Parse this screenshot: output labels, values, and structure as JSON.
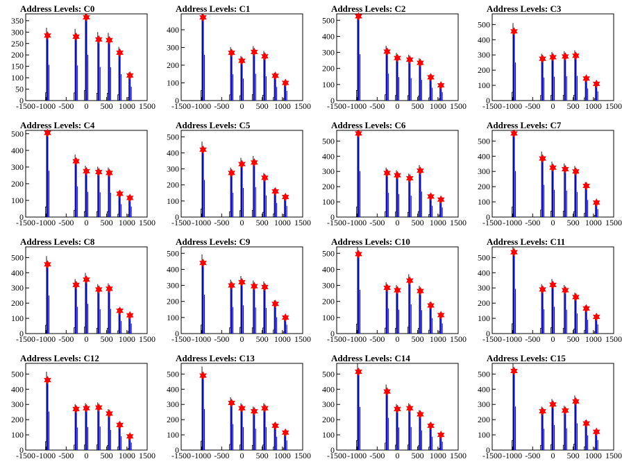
{
  "chart_data": [
    {
      "type": "bar",
      "title": "Address Levels: C0",
      "xlim": [
        -1500,
        1500
      ],
      "ylim": [
        0,
        380
      ],
      "yticks": [
        0,
        50,
        100,
        150,
        200,
        250,
        300,
        350
      ],
      "xticks": [
        -1500,
        -1000,
        -500,
        0,
        500,
        1000,
        1500
      ],
      "peaks": [
        {
          "x": -960,
          "y": 285
        },
        {
          "x": -255,
          "y": 280
        },
        {
          "x": 0,
          "y": 365
        },
        {
          "x": 305,
          "y": 268
        },
        {
          "x": 565,
          "y": 265
        },
        {
          "x": 825,
          "y": 210
        },
        {
          "x": 1075,
          "y": 110
        }
      ]
    },
    {
      "type": "bar",
      "title": "Address Levels: C1",
      "xlim": [
        -1500,
        1500
      ],
      "ylim": [
        0,
        490
      ],
      "yticks": [
        0,
        100,
        200,
        300,
        400
      ],
      "xticks": [
        -1500,
        -1000,
        -500,
        0,
        500,
        1000,
        1500
      ],
      "peaks": [
        {
          "x": -960,
          "y": 470
        },
        {
          "x": -255,
          "y": 270
        },
        {
          "x": 0,
          "y": 225
        },
        {
          "x": 305,
          "y": 275
        },
        {
          "x": 565,
          "y": 250
        },
        {
          "x": 825,
          "y": 140
        },
        {
          "x": 1075,
          "y": 100
        }
      ]
    },
    {
      "type": "bar",
      "title": "Address Levels: C2",
      "xlim": [
        -1500,
        1500
      ],
      "ylim": [
        0,
        540
      ],
      "yticks": [
        0,
        100,
        200,
        300,
        400,
        500
      ],
      "xticks": [
        -1500,
        -1000,
        -500,
        0,
        500,
        1000,
        1500
      ],
      "peaks": [
        {
          "x": -960,
          "y": 525
        },
        {
          "x": -255,
          "y": 305
        },
        {
          "x": 0,
          "y": 265
        },
        {
          "x": 305,
          "y": 255
        },
        {
          "x": 565,
          "y": 235
        },
        {
          "x": 825,
          "y": 145
        },
        {
          "x": 1075,
          "y": 95
        }
      ]
    },
    {
      "type": "bar",
      "title": "Address Levels: C3",
      "xlim": [
        -1500,
        1500
      ],
      "ylim": [
        0,
        570
      ],
      "yticks": [
        0,
        100,
        200,
        300,
        400,
        500
      ],
      "xticks": [
        -1500,
        -1000,
        -500,
        0,
        500,
        1000,
        1500
      ],
      "peaks": [
        {
          "x": -960,
          "y": 455
        },
        {
          "x": -255,
          "y": 275
        },
        {
          "x": 0,
          "y": 285
        },
        {
          "x": 305,
          "y": 290
        },
        {
          "x": 565,
          "y": 295
        },
        {
          "x": 825,
          "y": 145
        },
        {
          "x": 1075,
          "y": 110
        }
      ]
    },
    {
      "type": "bar",
      "title": "Address Levels: C4",
      "xlim": [
        -1500,
        1500
      ],
      "ylim": [
        0,
        520
      ],
      "yticks": [
        0,
        100,
        200,
        300,
        400,
        500
      ],
      "xticks": [
        -1500,
        -1000,
        -500,
        0,
        500,
        1000,
        1500
      ],
      "peaks": [
        {
          "x": -960,
          "y": 505
        },
        {
          "x": -255,
          "y": 335
        },
        {
          "x": 0,
          "y": 275
        },
        {
          "x": 305,
          "y": 270
        },
        {
          "x": 565,
          "y": 265
        },
        {
          "x": 825,
          "y": 140
        },
        {
          "x": 1075,
          "y": 115
        }
      ]
    },
    {
      "type": "bar",
      "title": "Address Levels: C5",
      "xlim": [
        -1500,
        1500
      ],
      "ylim": [
        0,
        540
      ],
      "yticks": [
        0,
        100,
        200,
        300,
        400,
        500
      ],
      "xticks": [
        -1500,
        -1000,
        -500,
        0,
        500,
        1000,
        1500
      ],
      "peaks": [
        {
          "x": -960,
          "y": 420
        },
        {
          "x": -255,
          "y": 275
        },
        {
          "x": 0,
          "y": 330
        },
        {
          "x": 305,
          "y": 340
        },
        {
          "x": 565,
          "y": 245
        },
        {
          "x": 825,
          "y": 160
        },
        {
          "x": 1075,
          "y": 125
        }
      ]
    },
    {
      "type": "bar",
      "title": "Address Levels: C6",
      "xlim": [
        -1500,
        1500
      ],
      "ylim": [
        0,
        570
      ],
      "yticks": [
        0,
        100,
        200,
        300,
        400,
        500
      ],
      "xticks": [
        -1500,
        -1000,
        -500,
        0,
        500,
        1000,
        1500
      ],
      "peaks": [
        {
          "x": -960,
          "y": 550
        },
        {
          "x": -255,
          "y": 290
        },
        {
          "x": 0,
          "y": 275
        },
        {
          "x": 305,
          "y": 255
        },
        {
          "x": 565,
          "y": 305
        },
        {
          "x": 825,
          "y": 135
        },
        {
          "x": 1075,
          "y": 115
        }
      ]
    },
    {
      "type": "bar",
      "title": "Address Levels: C7",
      "xlim": [
        -1500,
        1500
      ],
      "ylim": [
        0,
        570
      ],
      "yticks": [
        0,
        100,
        200,
        300,
        400,
        500
      ],
      "xticks": [
        -1500,
        -1000,
        -500,
        0,
        500,
        1000,
        1500
      ],
      "peaks": [
        {
          "x": -960,
          "y": 550
        },
        {
          "x": -255,
          "y": 385
        },
        {
          "x": 0,
          "y": 325
        },
        {
          "x": 305,
          "y": 315
        },
        {
          "x": 565,
          "y": 300
        },
        {
          "x": 825,
          "y": 205
        },
        {
          "x": 1075,
          "y": 95
        }
      ]
    },
    {
      "type": "bar",
      "title": "Address Levels: C8",
      "xlim": [
        -1500,
        1500
      ],
      "ylim": [
        0,
        570
      ],
      "yticks": [
        0,
        100,
        200,
        300,
        400,
        500
      ],
      "xticks": [
        -1500,
        -1000,
        -500,
        0,
        500,
        1000,
        1500
      ],
      "peaks": [
        {
          "x": -960,
          "y": 455
        },
        {
          "x": -255,
          "y": 320
        },
        {
          "x": 0,
          "y": 355
        },
        {
          "x": 305,
          "y": 290
        },
        {
          "x": 565,
          "y": 295
        },
        {
          "x": 825,
          "y": 150
        },
        {
          "x": 1075,
          "y": 120
        }
      ]
    },
    {
      "type": "bar",
      "title": "Address Levels: C9",
      "xlim": [
        -1500,
        1500
      ],
      "ylim": [
        0,
        540
      ],
      "yticks": [
        0,
        100,
        200,
        300,
        400,
        500
      ],
      "xticks": [
        -1500,
        -1000,
        -500,
        0,
        500,
        1000,
        1500
      ],
      "peaks": [
        {
          "x": -960,
          "y": 440
        },
        {
          "x": -255,
          "y": 300
        },
        {
          "x": 0,
          "y": 320
        },
        {
          "x": 305,
          "y": 295
        },
        {
          "x": 565,
          "y": 290
        },
        {
          "x": 825,
          "y": 185
        },
        {
          "x": 1075,
          "y": 100
        }
      ]
    },
    {
      "type": "bar",
      "title": "Address Levels: C10",
      "xlim": [
        -1500,
        1500
      ],
      "ylim": [
        0,
        540
      ],
      "yticks": [
        0,
        100,
        200,
        300,
        400,
        500
      ],
      "xticks": [
        -1500,
        -1000,
        -500,
        0,
        500,
        1000,
        1500
      ],
      "peaks": [
        {
          "x": -960,
          "y": 495
        },
        {
          "x": -255,
          "y": 285
        },
        {
          "x": 0,
          "y": 270
        },
        {
          "x": 305,
          "y": 330
        },
        {
          "x": 565,
          "y": 265
        },
        {
          "x": 825,
          "y": 175
        },
        {
          "x": 1075,
          "y": 115
        }
      ]
    },
    {
      "type": "bar",
      "title": "Address Levels: C11",
      "xlim": [
        -1500,
        1500
      ],
      "ylim": [
        0,
        570
      ],
      "yticks": [
        0,
        100,
        200,
        300,
        400,
        500
      ],
      "xticks": [
        -1500,
        -1000,
        -500,
        0,
        500,
        1000,
        1500
      ],
      "peaks": [
        {
          "x": -960,
          "y": 535
        },
        {
          "x": -255,
          "y": 290
        },
        {
          "x": 0,
          "y": 320
        },
        {
          "x": 305,
          "y": 285
        },
        {
          "x": 565,
          "y": 240
        },
        {
          "x": 825,
          "y": 165
        },
        {
          "x": 1075,
          "y": 110
        }
      ]
    },
    {
      "type": "bar",
      "title": "Address Levels: C12",
      "xlim": [
        -1500,
        1500
      ],
      "ylim": [
        0,
        570
      ],
      "yticks": [
        0,
        100,
        200,
        300,
        400,
        500
      ],
      "xticks": [
        -1500,
        -1000,
        -500,
        0,
        500,
        1000,
        1500
      ],
      "peaks": [
        {
          "x": -960,
          "y": 460
        },
        {
          "x": -255,
          "y": 270
        },
        {
          "x": 0,
          "y": 275
        },
        {
          "x": 305,
          "y": 280
        },
        {
          "x": 565,
          "y": 240
        },
        {
          "x": 825,
          "y": 165
        },
        {
          "x": 1075,
          "y": 90
        }
      ]
    },
    {
      "type": "bar",
      "title": "Address Levels: C13",
      "xlim": [
        -1500,
        1500
      ],
      "ylim": [
        0,
        570
      ],
      "yticks": [
        0,
        100,
        200,
        300,
        400,
        500
      ],
      "xticks": [
        -1500,
        -1000,
        -500,
        0,
        500,
        1000,
        1500
      ],
      "peaks": [
        {
          "x": -960,
          "y": 490
        },
        {
          "x": -255,
          "y": 310
        },
        {
          "x": 0,
          "y": 275
        },
        {
          "x": 305,
          "y": 255
        },
        {
          "x": 565,
          "y": 275
        },
        {
          "x": 825,
          "y": 160
        },
        {
          "x": 1075,
          "y": 115
        }
      ]
    },
    {
      "type": "bar",
      "title": "Address Levels: C14",
      "xlim": [
        -1500,
        1500
      ],
      "ylim": [
        0,
        570
      ],
      "yticks": [
        0,
        100,
        200,
        300,
        400,
        500
      ],
      "xticks": [
        -1500,
        -1000,
        -500,
        0,
        500,
        1000,
        1500
      ],
      "peaks": [
        {
          "x": -960,
          "y": 515
        },
        {
          "x": -255,
          "y": 385
        },
        {
          "x": 0,
          "y": 270
        },
        {
          "x": 305,
          "y": 275
        },
        {
          "x": 565,
          "y": 235
        },
        {
          "x": 825,
          "y": 160
        },
        {
          "x": 1075,
          "y": 100
        }
      ]
    },
    {
      "type": "bar",
      "title": "Address Levels: C15",
      "xlim": [
        -1500,
        1500
      ],
      "ylim": [
        0,
        570
      ],
      "yticks": [
        0,
        100,
        200,
        300,
        400,
        500
      ],
      "xticks": [
        -1500,
        -1000,
        -500,
        0,
        500,
        1000,
        1500
      ],
      "peaks": [
        {
          "x": -960,
          "y": 520
        },
        {
          "x": -255,
          "y": 255
        },
        {
          "x": 0,
          "y": 300
        },
        {
          "x": 305,
          "y": 260
        },
        {
          "x": 565,
          "y": 320
        },
        {
          "x": 825,
          "y": 175
        },
        {
          "x": 1075,
          "y": 120
        }
      ]
    }
  ],
  "colors": {
    "histogram": "#0000ff",
    "outline": "#000000",
    "marker": "#ff0000"
  }
}
